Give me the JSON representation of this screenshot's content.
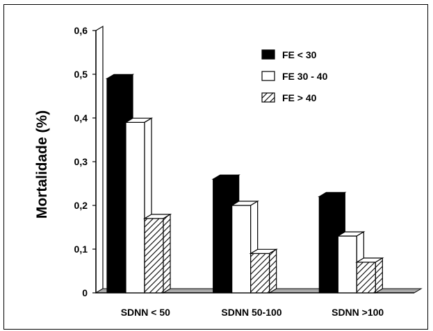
{
  "chart_data": {
    "type": "bar",
    "ylabel": "Mortalidade (%)",
    "xlabel": "",
    "ylim": [
      0,
      0.6
    ],
    "y_ticks": [
      "0",
      "0,1",
      "0,2",
      "0,3",
      "0,4",
      "0,5",
      "0,6"
    ],
    "categories": [
      "SDNN < 50",
      "SDNN 50-100",
      "SDNN >100"
    ],
    "series": [
      {
        "name": "FE < 30",
        "values": [
          0.49,
          0.26,
          0.22
        ],
        "fill": "#000000"
      },
      {
        "name": "FE 30 - 40",
        "values": [
          0.39,
          0.2,
          0.13
        ],
        "fill": "#ffffff"
      },
      {
        "name": "FE > 40",
        "values": [
          0.17,
          0.09,
          0.07
        ],
        "fill": "hatch"
      }
    ],
    "legend_position": "top-right",
    "three_d": true,
    "grid": false
  }
}
